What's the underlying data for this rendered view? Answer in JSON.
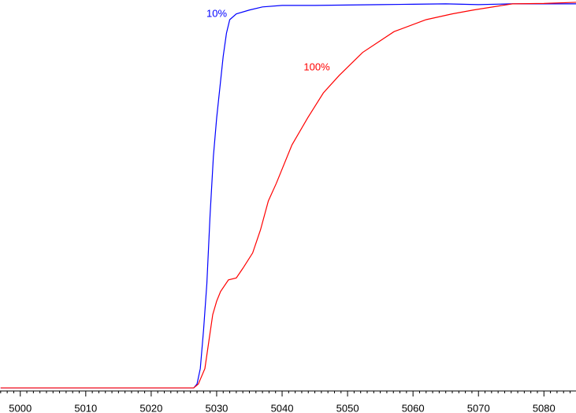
{
  "chart_data": {
    "type": "line",
    "xlim": [
      4996.9,
      5084.9
    ],
    "ylim": [
      -0.8,
      100.6
    ],
    "xticks": [
      5000,
      5010,
      5020,
      5030,
      5040,
      5050,
      5060,
      5070,
      5080
    ],
    "xminorticks": [
      4997,
      4998,
      4999,
      5001,
      5002,
      5003,
      5004,
      5005,
      5006,
      5007,
      5008,
      5009,
      5011,
      5012,
      5013,
      5014,
      5015,
      5016,
      5017,
      5018,
      5019,
      5021,
      5022,
      5023,
      5024,
      5025,
      5026,
      5027,
      5028,
      5029,
      5031,
      5032,
      5033,
      5034,
      5035,
      5036,
      5037,
      5038,
      5039,
      5041,
      5042,
      5043,
      5044,
      5045,
      5046,
      5047,
      5048,
      5049,
      5051,
      5052,
      5053,
      5054,
      5055,
      5056,
      5057,
      5058,
      5059,
      5061,
      5062,
      5063,
      5064,
      5065,
      5066,
      5067,
      5068,
      5069,
      5071,
      5072,
      5073,
      5074,
      5075,
      5076,
      5077,
      5078,
      5079,
      5081,
      5082,
      5083,
      5084
    ],
    "series": [
      {
        "name": "10%",
        "color": "#0000ff",
        "x": [
          4997,
          5026.5,
          5027,
          5027.5,
          5028,
          5028.5,
          5029,
          5029.5,
          5030,
          5030.5,
          5031,
          5031.5,
          5032,
          5033,
          5035,
          5037,
          5040,
          5045,
          5050,
          5055,
          5060,
          5065,
          5070,
          5075,
          5080,
          5084.9
        ],
        "values": [
          0,
          0,
          1,
          5,
          15,
          27,
          45,
          60,
          70,
          78,
          86,
          92,
          95.5,
          97,
          98,
          98.8,
          99.2,
          99.2,
          99.3,
          99.4,
          99.5,
          99.6,
          99.4,
          99.6,
          99.6,
          99.6
        ]
      },
      {
        "name": "100%",
        "color": "#ff0000",
        "x": [
          4997,
          5026.5,
          5027.2,
          5028.2,
          5028.8,
          5029.4,
          5030,
          5030.6,
          5031.8,
          5033,
          5034,
          5035.5,
          5036.7,
          5037.9,
          5039.1,
          5041.5,
          5043.9,
          5046.3,
          5048.7,
          5052.3,
          5057.1,
          5062,
          5066,
          5069.2,
          5075.2,
          5080,
          5084.9
        ],
        "values": [
          0,
          0,
          1,
          5,
          12,
          19,
          22.5,
          25,
          28,
          28.5,
          31,
          35,
          41,
          48.5,
          53,
          63,
          70,
          76.5,
          81,
          87,
          92.4,
          95.5,
          97,
          98,
          99.6,
          99.7,
          100
        ]
      }
    ]
  }
}
